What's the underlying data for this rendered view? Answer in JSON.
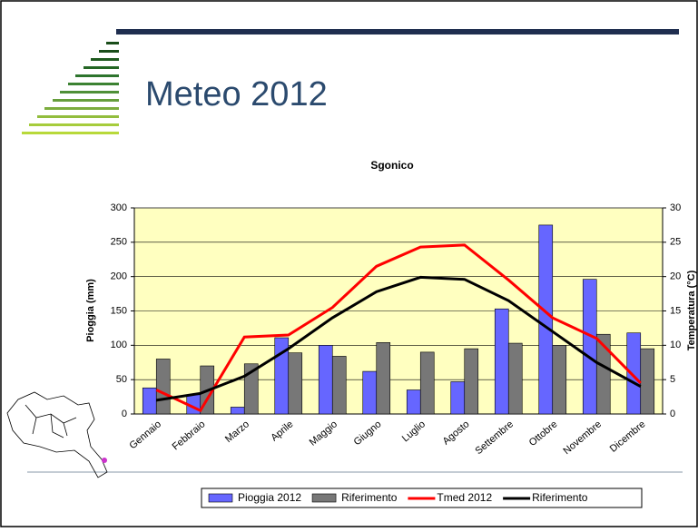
{
  "header": {
    "title": "Meteo 2012"
  },
  "chart_data": {
    "type": "bar",
    "title": "Sgonico",
    "y_label": "Pioggia (mm)",
    "y2_label": "Temperatura (°C)",
    "categories": [
      "Gennaio",
      "Febbraio",
      "Marzo",
      "Aprile",
      "Maggio",
      "Giugno",
      "Luglio",
      "Agosto",
      "Settembre",
      "Ottobre",
      "Novembre",
      "Dicembre"
    ],
    "series": [
      {
        "name": "Pioggia 2012",
        "type": "bar",
        "color": "#6666ff",
        "values": [
          38,
          28,
          10,
          111,
          100,
          62,
          35,
          47,
          153,
          275,
          196,
          118
        ]
      },
      {
        "name": "Riferimento",
        "type": "bar",
        "color": "#777777",
        "values": [
          80,
          70,
          73,
          89,
          84,
          104,
          90,
          95,
          103,
          100,
          116,
          95
        ]
      },
      {
        "name": "Tmed 2012",
        "type": "line",
        "axis": "y2",
        "color": "#ff0000",
        "values": [
          3.5,
          0.5,
          11.2,
          11.5,
          15.5,
          21.5,
          24.3,
          24.6,
          19.5,
          14,
          11,
          4.5
        ]
      },
      {
        "name": "Riferimento",
        "type": "line",
        "axis": "y2",
        "color": "#000000",
        "values": [
          2,
          3,
          5.5,
          9.5,
          14,
          17.8,
          19.9,
          19.6,
          16.5,
          12,
          7.5,
          4
        ]
      }
    ],
    "ylim": [
      0,
      300
    ],
    "yticks": [
      0,
      50,
      100,
      150,
      200,
      250,
      300
    ],
    "y2lim": [
      0,
      30
    ],
    "y2ticks": [
      0,
      5,
      10,
      15,
      20,
      25,
      30
    ],
    "grid": true,
    "legend": "bottom"
  }
}
